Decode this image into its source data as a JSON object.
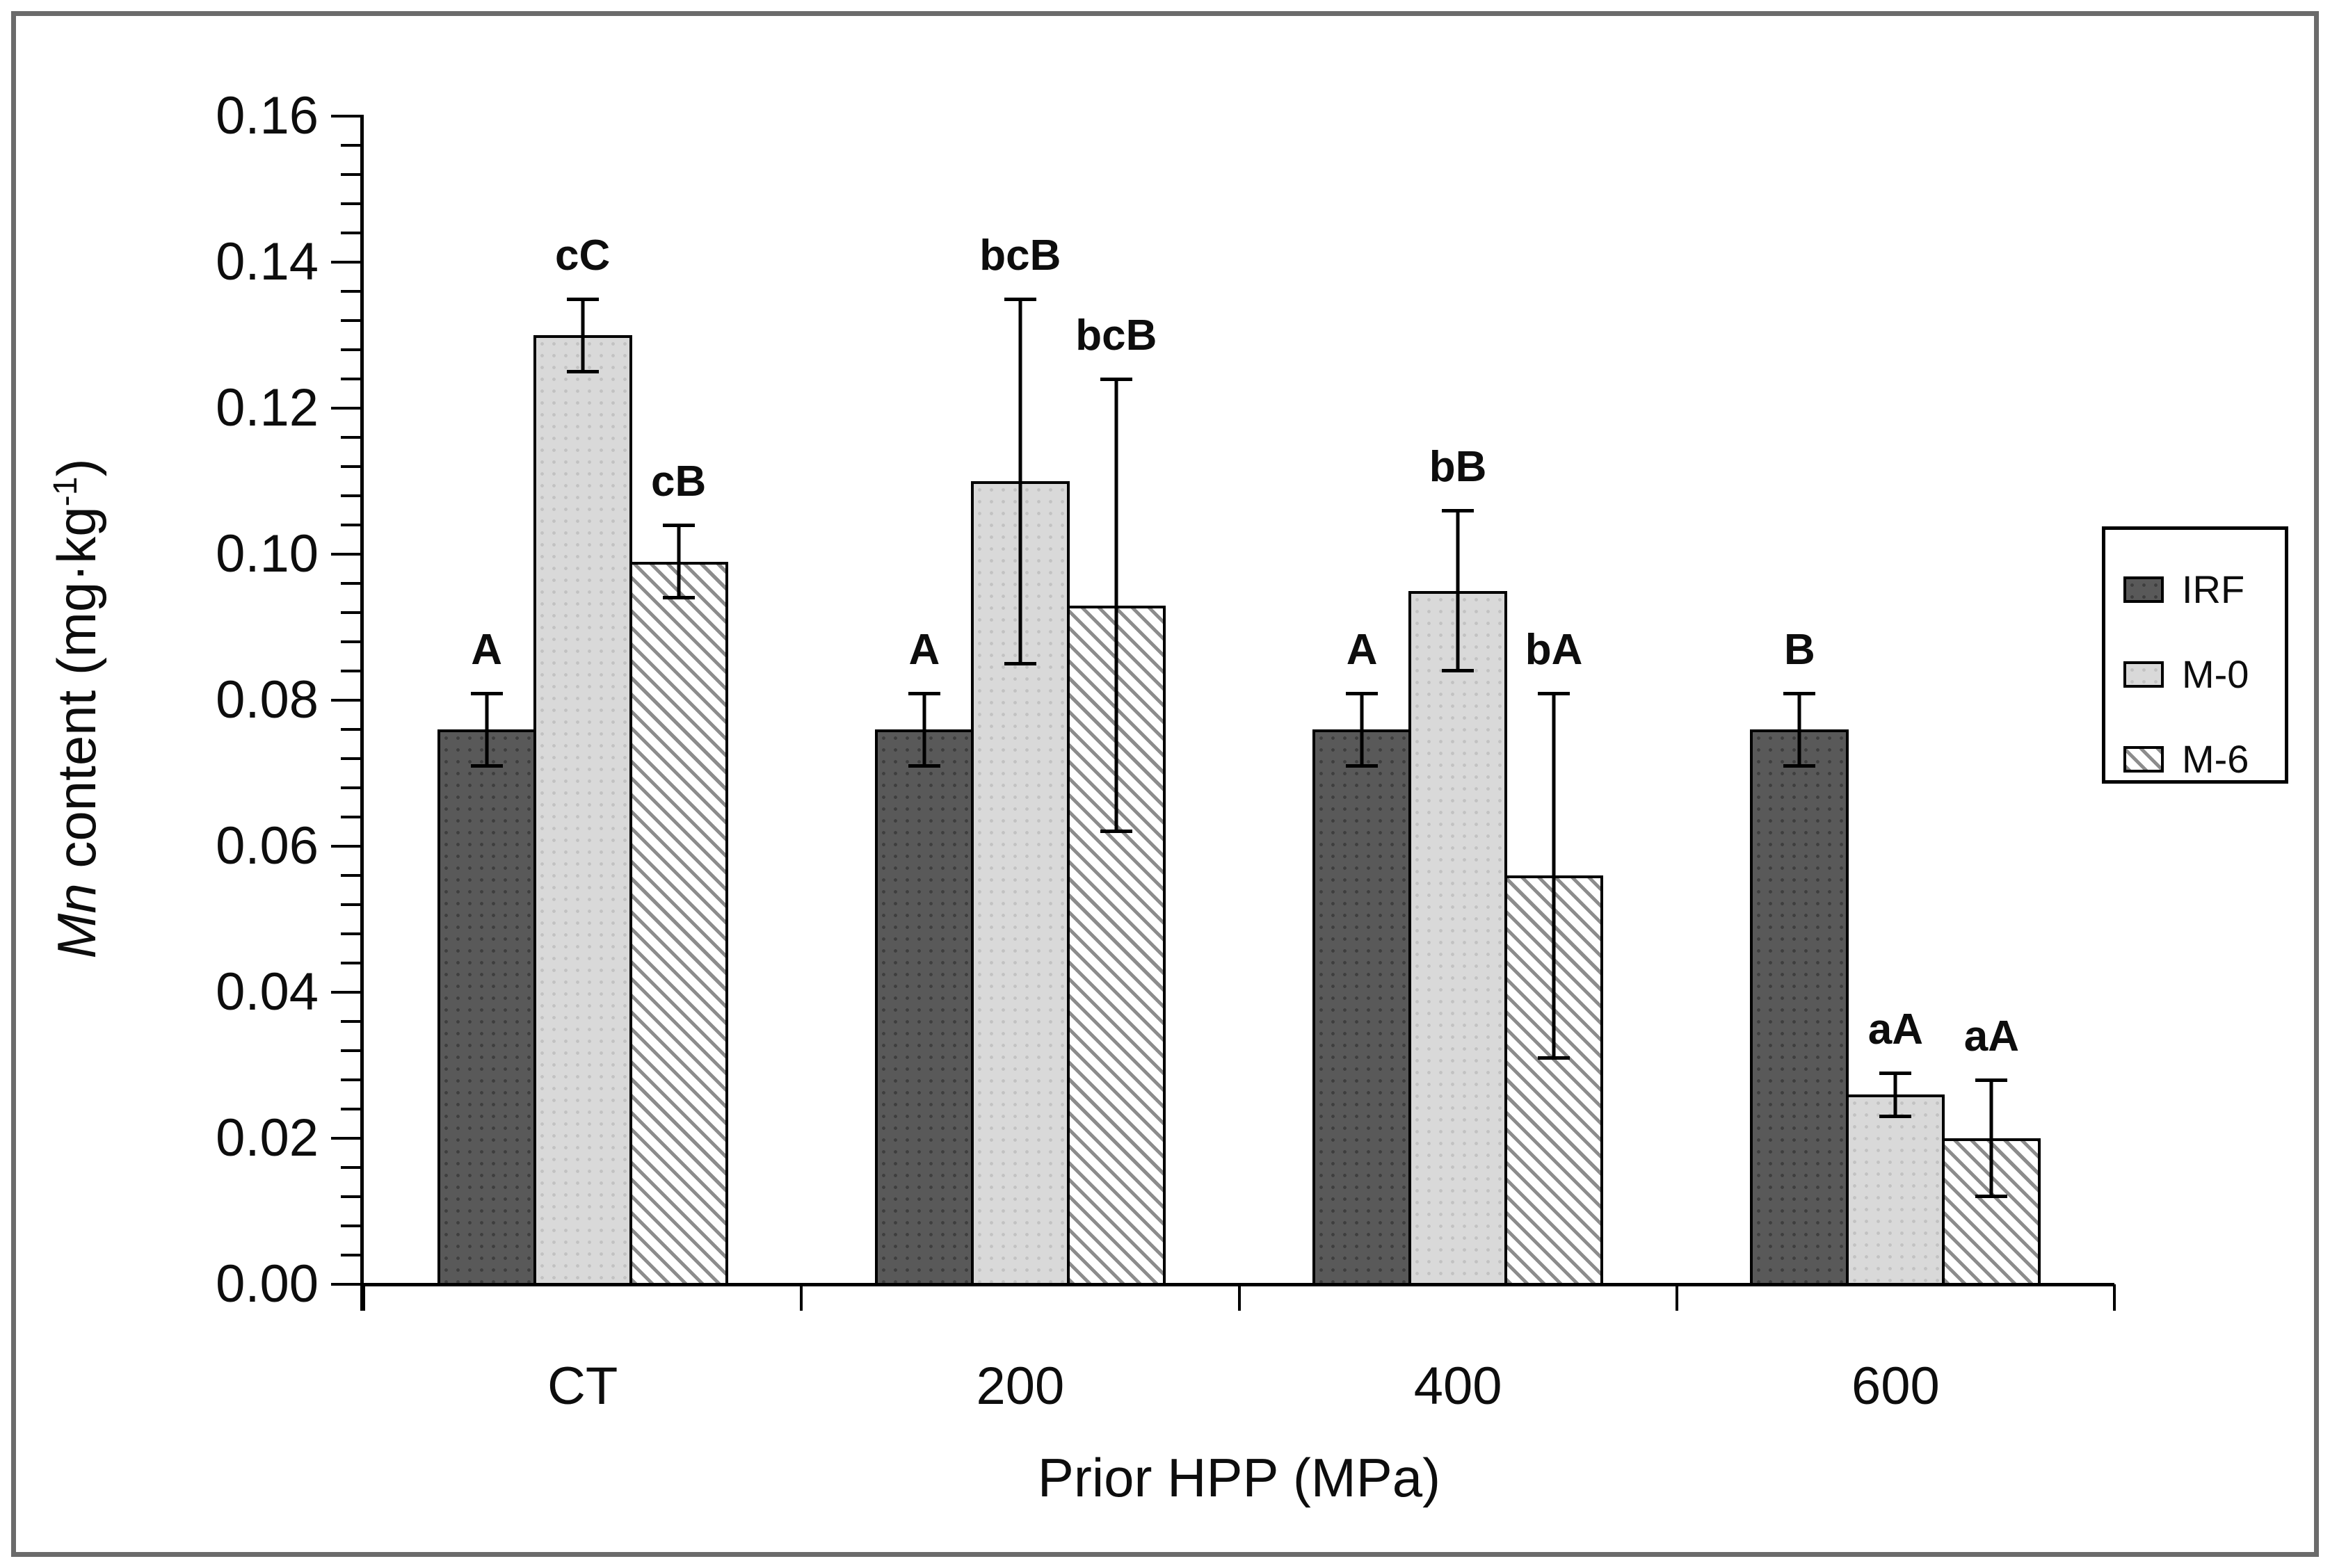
{
  "chart_data": {
    "type": "bar",
    "title": "",
    "categories": [
      "CT",
      "200",
      "400",
      "600"
    ],
    "series": [
      {
        "name": "IRF",
        "pattern": "dots-dark",
        "fill": "#595959",
        "values": [
          0.076,
          0.076,
          0.076,
          0.076
        ],
        "errors": [
          0.005,
          0.005,
          0.005,
          0.005
        ],
        "sig_labels": [
          "A",
          "A",
          "A",
          "B"
        ]
      },
      {
        "name": "M-0",
        "pattern": "dots-light",
        "fill": "#d9d9d9",
        "values": [
          0.13,
          0.11,
          0.095,
          0.026
        ],
        "errors": [
          0.005,
          0.025,
          0.011,
          0.003
        ],
        "sig_labels": [
          "cC",
          "bcB",
          "bB",
          "aA"
        ]
      },
      {
        "name": "M-6",
        "pattern": "hatch-diagonal-down",
        "fill": "#ffffff",
        "hatch_line_color": "#8c8c8c",
        "values": [
          0.099,
          0.093,
          0.056,
          0.02
        ],
        "errors": [
          0.005,
          0.031,
          0.025,
          0.008
        ],
        "sig_labels": [
          "cB",
          "bcB",
          "bA",
          "aA"
        ]
      }
    ],
    "xlabel": "Prior HPP (MPa)",
    "ylabel": {
      "italic": "Mn",
      "text": " content (mg·kg",
      "sup": "-1",
      "close": ")"
    },
    "ylim": [
      0,
      0.16
    ],
    "ytick_major": 0.02,
    "ytick_minor": 0.004,
    "ytick_labels": [
      "0.16",
      "0.14",
      "0.12",
      "0.10",
      "0.08",
      "0.06",
      "0.04",
      "0.02",
      "0.00"
    ],
    "grid": false,
    "error_bars": "symmetric-with-caps",
    "legend": {
      "position": "right",
      "entries": [
        "IRF",
        "M-0",
        "M-6"
      ]
    },
    "colors": {
      "axis": "#000000",
      "bar_border": "#000000",
      "dark_fill": "#595959",
      "light_fill": "#d9d9d9",
      "hatch_line": "#8c8c8c",
      "frame_border": "#6b6b6b",
      "text": "#0d0d0d",
      "background": "#ffffff"
    }
  }
}
